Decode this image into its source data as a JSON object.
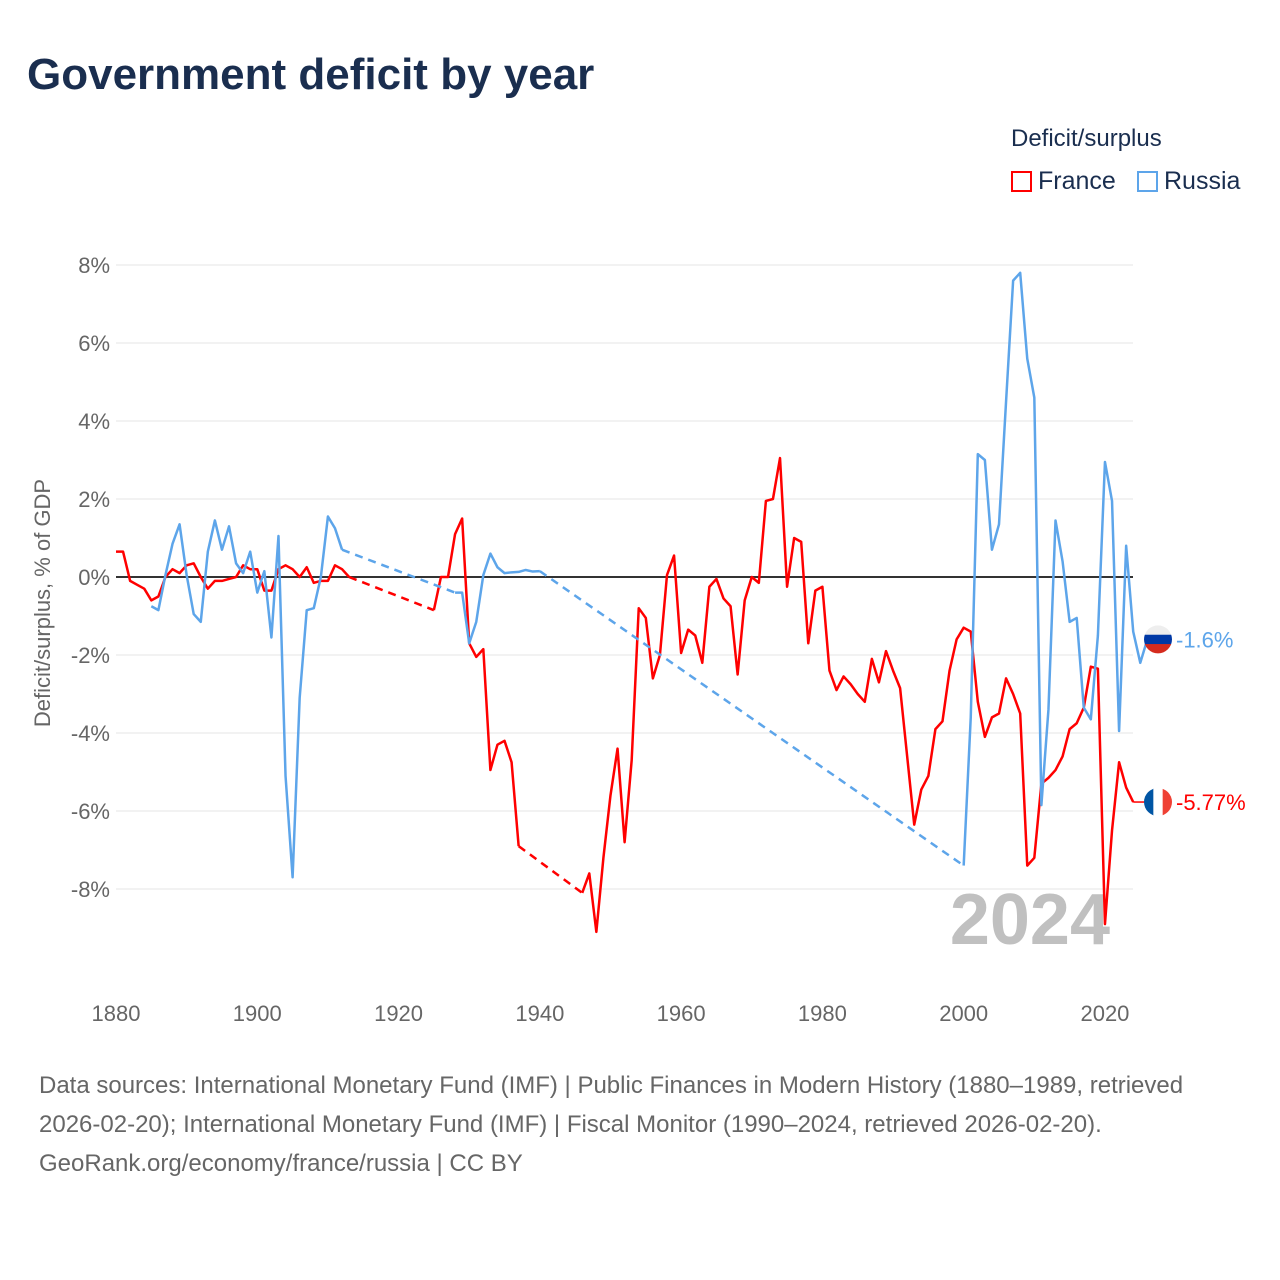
{
  "title": "Government deficit by year",
  "legend": {
    "title": "Deficit/surplus",
    "items": [
      "France",
      "Russia"
    ]
  },
  "footer": {
    "sources": "Data sources: International Monetary Fund (IMF) | Public Finances in Modern History (1880–1989, retrieved 2026-02-20); International Monetary Fund (IMF) | Fiscal Monitor (1990–2024, retrieved 2026-02-20).",
    "credit": "GeoRank.org/economy/france/russia | CC BY"
  },
  "chart_data": {
    "type": "line",
    "title": "Government deficit by year",
    "ylabel": "Deficit/surplus, % of GDP",
    "xlim": [
      1880,
      2024
    ],
    "ylim": [
      -10,
      8
    ],
    "xticks": [
      1880,
      1900,
      1920,
      1940,
      1960,
      1980,
      2000,
      2020
    ],
    "yticks": [
      -8,
      -6,
      -4,
      -2,
      0,
      2,
      4,
      6,
      8
    ],
    "ytick_labels": [
      "-8%",
      "-6%",
      "-4%",
      "-2%",
      "0%",
      "2%",
      "4%",
      "6%",
      "8%"
    ],
    "year_label": "2024",
    "start_year": 1880,
    "series": [
      {
        "name": "France",
        "color": "#ff0000",
        "end_label": "-5.77%",
        "values": [
          0.65,
          0.65,
          -0.1,
          -0.2,
          -0.3,
          -0.6,
          -0.5,
          0.0,
          0.2,
          0.1,
          0.3,
          0.35,
          0.0,
          -0.3,
          -0.1,
          -0.1,
          -0.05,
          0.0,
          0.3,
          0.2,
          0.2,
          -0.35,
          -0.35,
          0.2,
          0.3,
          0.2,
          0.0,
          0.25,
          -0.15,
          -0.1,
          -0.1,
          0.3,
          0.2,
          0.0,
          null,
          null,
          null,
          null,
          null,
          null,
          null,
          null,
          null,
          null,
          null,
          -0.85,
          0.0,
          0.0,
          1.1,
          1.5,
          -1.7,
          -2.05,
          -1.85,
          -4.95,
          -4.3,
          -4.2,
          -4.75,
          -6.9,
          null,
          null,
          null,
          null,
          null,
          null,
          null,
          null,
          -8.1,
          -7.6,
          -9.1,
          -7.2,
          -5.6,
          -4.4,
          -6.8,
          -4.7,
          -0.8,
          -1.05,
          -2.6,
          -2.0,
          0.05,
          0.55,
          -1.95,
          -1.35,
          -1.5,
          -2.2,
          -0.25,
          -0.05,
          -0.55,
          -0.75,
          -2.5,
          -0.6,
          0.0,
          -0.15,
          1.95,
          2.0,
          3.05,
          -0.25,
          1.0,
          0.9,
          -1.7,
          -0.35,
          -0.25,
          -2.4,
          -2.9,
          -2.55,
          -2.75,
          -3.0,
          -3.2,
          -2.1,
          -2.7,
          -1.9,
          -2.4,
          -2.85,
          -4.6,
          -6.35,
          -5.45,
          -5.1,
          -3.9,
          -3.7,
          -2.4,
          -1.6,
          -1.3,
          -1.4,
          -3.2,
          -4.1,
          -3.6,
          -3.5,
          -2.6,
          -3.0,
          -3.5,
          -7.4,
          -7.2,
          -5.3,
          -5.15,
          -4.95,
          -4.6,
          -3.9,
          -3.75,
          -3.35,
          -2.3,
          -2.35,
          -8.9,
          -6.5,
          -4.75,
          -5.4,
          -5.77
        ]
      },
      {
        "name": "Russia",
        "color": "#5da5ea",
        "end_label": "-1.6%",
        "values": [
          null,
          null,
          null,
          null,
          null,
          -0.75,
          -0.85,
          0.05,
          0.85,
          1.35,
          0.05,
          -0.95,
          -1.15,
          0.65,
          1.45,
          0.7,
          1.3,
          0.35,
          0.1,
          0.65,
          -0.4,
          0.15,
          -1.55,
          1.05,
          -5.1,
          -7.7,
          -3.1,
          -0.85,
          -0.8,
          0.0,
          1.55,
          1.25,
          0.7,
          null,
          null,
          null,
          null,
          null,
          null,
          null,
          null,
          null,
          null,
          null,
          null,
          null,
          null,
          null,
          -0.4,
          -0.4,
          -1.7,
          -1.15,
          0.05,
          0.6,
          0.25,
          0.1,
          0.12,
          0.13,
          0.18,
          0.14,
          0.15,
          null,
          null,
          null,
          null,
          null,
          null,
          null,
          null,
          null,
          null,
          null,
          null,
          null,
          null,
          null,
          null,
          null,
          null,
          null,
          null,
          null,
          null,
          null,
          null,
          null,
          null,
          null,
          null,
          null,
          null,
          null,
          null,
          null,
          null,
          null,
          null,
          null,
          null,
          null,
          null,
          null,
          null,
          null,
          null,
          null,
          null,
          null,
          null,
          null,
          null,
          null,
          null,
          null,
          null,
          null,
          null,
          null,
          null,
          null,
          -7.4,
          -3.6,
          3.15,
          3.0,
          0.7,
          1.35,
          4.5,
          7.6,
          7.8,
          5.6,
          4.6,
          -5.85,
          -3.4,
          1.45,
          0.4,
          -1.15,
          -1.05,
          -3.35,
          -3.65,
          -1.5,
          2.95,
          1.95,
          -3.95,
          0.8,
          -1.4,
          -2.2,
          -1.6
        ]
      }
    ]
  }
}
